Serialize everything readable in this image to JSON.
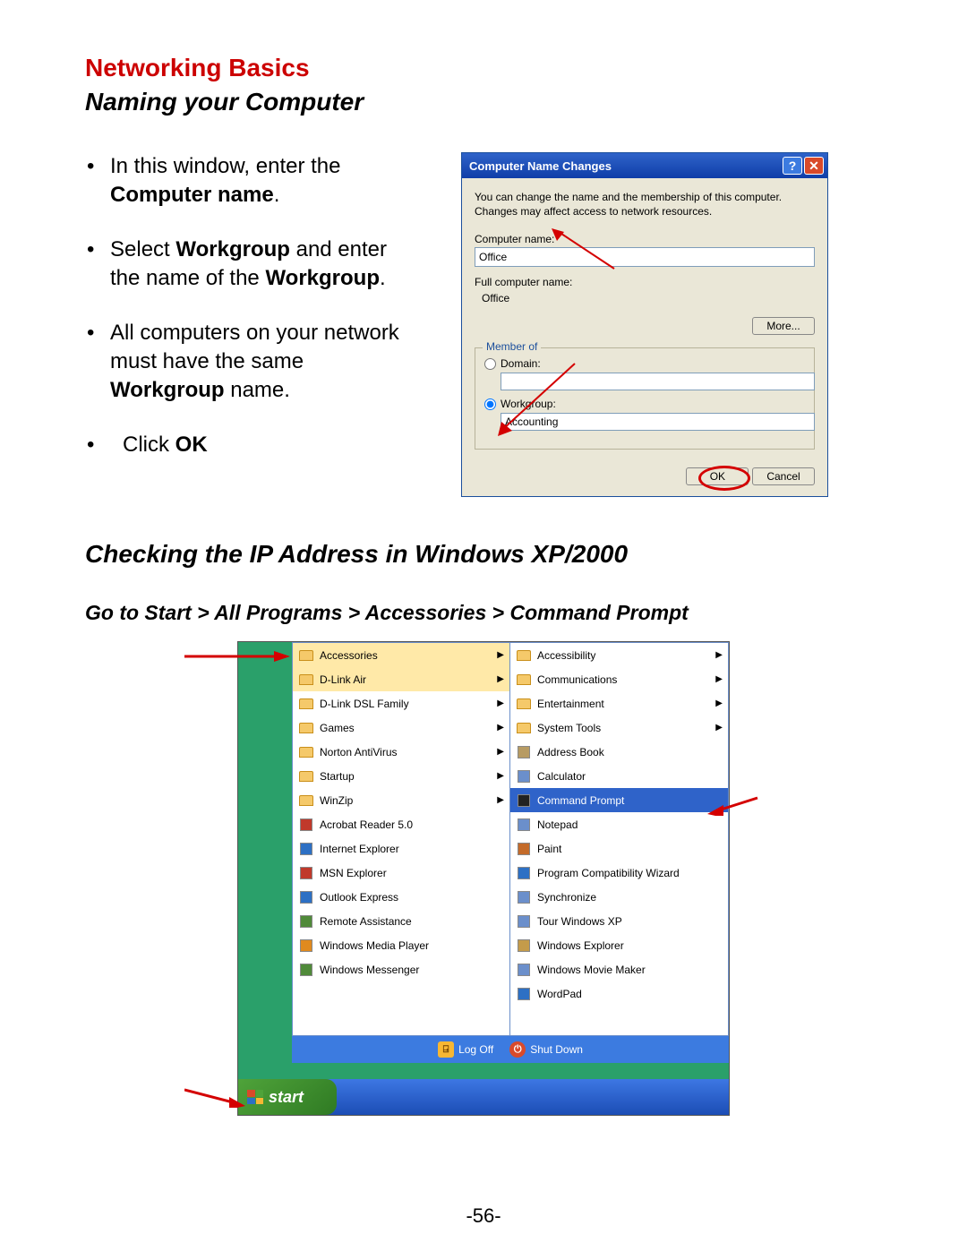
{
  "headings": {
    "main": "Networking Basics",
    "sub1": "Naming your Computer",
    "sub2": "Checking the IP Address in Windows XP/2000",
    "path_prefix": "Go to Start",
    "path_rest": " > All Programs > Accessories   > Command Prompt"
  },
  "bullets": {
    "b1a": "In this window, enter the ",
    "b1b": "Computer name",
    "b1c": ".",
    "b2a": "Select ",
    "b2b": "Workgroup",
    "b2c": " and enter the name of the ",
    "b2d": "Workgroup",
    "b2e": ".",
    "b3a": "All computers on your network must have the same ",
    "b3b": "Workgroup",
    "b3c": " name.",
    "b4a": "Click ",
    "b4b": "OK"
  },
  "dialog": {
    "title": "Computer Name Changes",
    "desc": "You can change the name and the membership of this computer. Changes may affect access to network resources.",
    "computer_name_label": "Computer name:",
    "computer_name_value": "Office",
    "full_name_label": "Full computer name:",
    "full_name_value": "Office",
    "more_btn": "More...",
    "member_of": "Member of",
    "domain_label": "Domain:",
    "domain_value": "",
    "workgroup_label": "Workgroup:",
    "workgroup_value": "Accounting",
    "ok": "OK",
    "cancel": "Cancel",
    "help_glyph": "?",
    "close_glyph": "✕"
  },
  "menu": {
    "left": [
      {
        "label": "Accessories",
        "type": "folder",
        "arrow": true,
        "sel": true
      },
      {
        "label": "D-Link Air",
        "type": "folder",
        "arrow": true,
        "sel": true
      },
      {
        "label": "D-Link DSL Family",
        "type": "folder",
        "arrow": true
      },
      {
        "label": "Games",
        "type": "folder",
        "arrow": true
      },
      {
        "label": "Norton AntiVirus",
        "type": "folder",
        "arrow": true
      },
      {
        "label": "Startup",
        "type": "folder",
        "arrow": true
      },
      {
        "label": "WinZip",
        "type": "folder",
        "arrow": true
      },
      {
        "label": "Acrobat Reader 5.0",
        "type": "app",
        "color": "#c0392b"
      },
      {
        "label": "Internet Explorer",
        "type": "app",
        "color": "#2d70c4"
      },
      {
        "label": "MSN Explorer",
        "type": "app",
        "color": "#c0392b"
      },
      {
        "label": "Outlook Express",
        "type": "app",
        "color": "#2d70c4"
      },
      {
        "label": "Remote Assistance",
        "type": "app",
        "color": "#508a3a"
      },
      {
        "label": "Windows Media Player",
        "type": "app",
        "color": "#e08a1e"
      },
      {
        "label": "Windows Messenger",
        "type": "app",
        "color": "#508a3a"
      }
    ],
    "right": [
      {
        "label": "Accessibility",
        "type": "folder",
        "arrow": true
      },
      {
        "label": "Communications",
        "type": "folder",
        "arrow": true
      },
      {
        "label": "Entertainment",
        "type": "folder",
        "arrow": true
      },
      {
        "label": "System Tools",
        "type": "folder",
        "arrow": true
      },
      {
        "label": "Address Book",
        "type": "app",
        "color": "#b79b63"
      },
      {
        "label": "Calculator",
        "type": "app",
        "color": "#6b8fcb"
      },
      {
        "label": "Command Prompt",
        "type": "app",
        "hl": true,
        "color": "#222"
      },
      {
        "label": "Notepad",
        "type": "app",
        "color": "#6b8fcb"
      },
      {
        "label": "Paint",
        "type": "app",
        "color": "#c46b2a"
      },
      {
        "label": "Program Compatibility Wizard",
        "type": "app",
        "color": "#2d70c4"
      },
      {
        "label": "Synchronize",
        "type": "app",
        "color": "#6b8fcb"
      },
      {
        "label": "Tour Windows XP",
        "type": "app",
        "color": "#6b8fcb"
      },
      {
        "label": "Windows Explorer",
        "type": "app",
        "color": "#c49b4a"
      },
      {
        "label": "Windows Movie Maker",
        "type": "app",
        "color": "#6b8fcb"
      },
      {
        "label": "WordPad",
        "type": "app",
        "color": "#2d70c4"
      }
    ],
    "logoff": "Log Off",
    "shutdown": "Shut Down",
    "start": "start"
  },
  "page_number": "-56-",
  "colors": {
    "accent_red": "#cc0000",
    "xp_blue": "#2f63c9",
    "xp_beige": "#eae7d7"
  }
}
